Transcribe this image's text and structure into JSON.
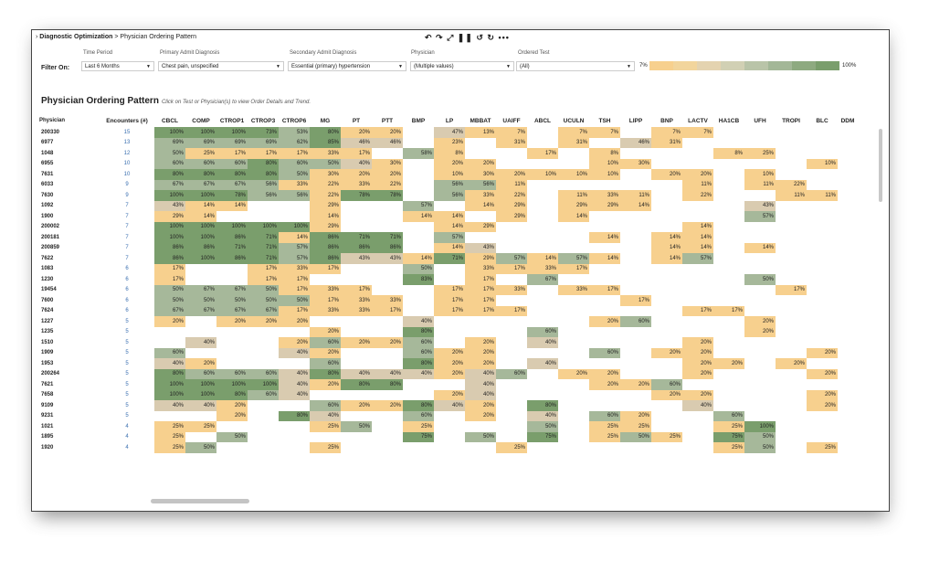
{
  "breadcrumb": {
    "root": "Diagnostic Optimization",
    "sep": " > ",
    "current": "Physician Ordering Pattern"
  },
  "toolbar": {
    "icons": "↶ ↷ ⤢ ❚❚ ↺ ↻  •••"
  },
  "filters": {
    "label": "Filter On:",
    "time_period": {
      "label": "Time Period",
      "value": "Last 6 Months"
    },
    "primary": {
      "label": "Primary Admit Diagnosis",
      "value": "Chest pain, unspecified"
    },
    "secondary": {
      "label": "Secondary Admit Diagnosis",
      "value": "Essential (primary) hypertension"
    },
    "physician": {
      "label": "Physician",
      "value": "(Multiple values)"
    },
    "ordered_test": {
      "label": "Ordered Test",
      "value": "(All)"
    }
  },
  "legend": {
    "min": "7%",
    "max": "100%"
  },
  "title": "Physician Ordering Pattern",
  "subtitle": "Click on Test or Physician(s) to view Order Details and Trend.",
  "colors": {
    "high": "#7a9e6c",
    "mid": "#a6b89a",
    "low_mid": "#d9cbb0",
    "low": "#f7d08e"
  },
  "columns": [
    "Physician",
    "Encounters (#)",
    "CBCL",
    "COMP",
    "CTROP1",
    "CTROP3",
    "CTROP6",
    "MG",
    "PT",
    "PTT",
    "BMP",
    "LP",
    "MBBAT",
    "UAIFF",
    "ABCL",
    "UCULN",
    "TSH",
    "LIPP",
    "BNP",
    "LACTV",
    "HA1CB",
    "UFH",
    "TROPI",
    "BLC",
    "DDM"
  ],
  "rows": [
    [
      "200330",
      "15",
      "100%",
      "100%",
      "100%",
      "73%",
      "53%",
      "80%",
      "20%",
      "20%",
      "",
      "47%",
      "13%",
      "7%",
      "",
      "7%",
      "7%",
      "",
      "7%",
      "7%",
      "",
      "",
      "",
      "",
      ""
    ],
    [
      "6977",
      "13",
      "69%",
      "69%",
      "69%",
      "69%",
      "62%",
      "85%",
      "46%",
      "46%",
      "",
      "23%",
      "",
      "31%",
      "",
      "31%",
      "",
      "46%",
      "31%",
      "",
      "",
      "",
      "",
      "",
      ""
    ],
    [
      "1048",
      "12",
      "50%",
      "25%",
      "17%",
      "17%",
      "17%",
      "33%",
      "17%",
      "",
      "58%",
      "8%",
      "",
      "",
      "17%",
      "",
      "8%",
      "",
      "",
      "",
      "8%",
      "25%",
      "",
      "",
      ""
    ],
    [
      "6955",
      "10",
      "60%",
      "60%",
      "60%",
      "80%",
      "60%",
      "50%",
      "40%",
      "30%",
      "",
      "20%",
      "20%",
      "",
      "",
      "",
      "10%",
      "30%",
      "",
      "",
      "",
      "",
      "",
      "10%",
      ""
    ],
    [
      "7631",
      "10",
      "80%",
      "80%",
      "80%",
      "80%",
      "50%",
      "30%",
      "20%",
      "20%",
      "",
      "10%",
      "30%",
      "20%",
      "10%",
      "10%",
      "10%",
      "",
      "20%",
      "20%",
      "",
      "10%",
      "",
      "",
      ""
    ],
    [
      "6033",
      "9",
      "67%",
      "67%",
      "67%",
      "56%",
      "33%",
      "22%",
      "33%",
      "22%",
      "",
      "56%",
      "56%",
      "11%",
      "",
      "",
      "",
      "",
      "",
      "11%",
      "",
      "11%",
      "22%",
      "",
      ""
    ],
    [
      "7630",
      "9",
      "100%",
      "100%",
      "78%",
      "56%",
      "56%",
      "22%",
      "78%",
      "78%",
      "",
      "56%",
      "33%",
      "22%",
      "",
      "11%",
      "33%",
      "11%",
      "",
      "22%",
      "",
      "",
      "11%",
      "11%",
      ""
    ],
    [
      "1092",
      "7",
      "43%",
      "14%",
      "14%",
      "",
      "",
      "29%",
      "",
      "",
      "57%",
      "",
      "14%",
      "29%",
      "",
      "29%",
      "29%",
      "14%",
      "",
      "",
      "",
      "43%",
      "",
      "",
      ""
    ],
    [
      "1900",
      "7",
      "29%",
      "14%",
      "",
      "",
      "",
      "14%",
      "",
      "",
      "14%",
      "14%",
      "",
      "29%",
      "",
      "14%",
      "",
      "",
      "",
      "",
      "",
      "57%",
      "",
      "",
      ""
    ],
    [
      "200002",
      "7",
      "100%",
      "100%",
      "100%",
      "100%",
      "100%",
      "29%",
      "",
      "",
      "",
      "14%",
      "29%",
      "",
      "",
      "",
      "",
      "",
      "",
      "14%",
      "",
      "",
      "",
      "",
      ""
    ],
    [
      "200181",
      "7",
      "100%",
      "100%",
      "86%",
      "71%",
      "14%",
      "86%",
      "71%",
      "71%",
      "",
      "57%",
      "",
      "",
      "",
      "",
      "14%",
      "",
      "14%",
      "14%",
      "",
      "",
      "",
      "",
      ""
    ],
    [
      "200859",
      "7",
      "86%",
      "86%",
      "71%",
      "71%",
      "57%",
      "86%",
      "86%",
      "86%",
      "",
      "14%",
      "43%",
      "",
      "",
      "",
      "",
      "",
      "14%",
      "14%",
      "",
      "14%",
      "",
      "",
      ""
    ],
    [
      "7622",
      "7",
      "86%",
      "100%",
      "86%",
      "71%",
      "57%",
      "86%",
      "43%",
      "43%",
      "14%",
      "71%",
      "29%",
      "57%",
      "14%",
      "57%",
      "14%",
      "",
      "14%",
      "57%",
      "",
      "",
      "",
      "",
      ""
    ],
    [
      "1083",
      "6",
      "17%",
      "",
      "",
      "17%",
      "33%",
      "17%",
      "",
      "",
      "50%",
      "",
      "33%",
      "17%",
      "33%",
      "17%",
      "",
      "",
      "",
      "",
      "",
      "",
      "",
      "",
      ""
    ],
    [
      "1230",
      "6",
      "17%",
      "",
      "",
      "17%",
      "17%",
      "",
      "",
      "",
      "83%",
      "",
      "17%",
      "",
      "67%",
      "",
      "",
      "",
      "",
      "",
      "",
      "50%",
      "",
      "",
      ""
    ],
    [
      "19454",
      "6",
      "50%",
      "67%",
      "67%",
      "50%",
      "17%",
      "33%",
      "17%",
      "",
      "",
      "17%",
      "17%",
      "33%",
      "",
      "33%",
      "17%",
      "",
      "",
      "",
      "",
      "",
      "17%",
      "",
      ""
    ],
    [
      "7600",
      "6",
      "50%",
      "50%",
      "50%",
      "50%",
      "50%",
      "17%",
      "33%",
      "33%",
      "",
      "17%",
      "17%",
      "",
      "",
      "",
      "",
      "17%",
      "",
      "",
      "",
      "",
      "",
      "",
      ""
    ],
    [
      "7624",
      "6",
      "67%",
      "67%",
      "67%",
      "67%",
      "17%",
      "33%",
      "33%",
      "17%",
      "",
      "17%",
      "17%",
      "17%",
      "",
      "",
      "",
      "",
      "",
      "17%",
      "17%",
      "",
      "",
      "",
      ""
    ],
    [
      "1227",
      "5",
      "20%",
      "",
      "20%",
      "20%",
      "20%",
      "",
      "",
      "",
      "40%",
      "",
      "",
      "",
      "",
      "",
      "20%",
      "60%",
      "",
      "",
      "",
      "20%",
      "",
      "",
      ""
    ],
    [
      "1235",
      "5",
      "",
      "",
      "",
      "",
      "",
      "20%",
      "",
      "",
      "80%",
      "",
      "",
      "",
      "60%",
      "",
      "",
      "",
      "",
      "",
      "",
      "20%",
      "",
      "",
      ""
    ],
    [
      "1510",
      "5",
      "",
      "40%",
      "",
      "",
      "20%",
      "60%",
      "20%",
      "20%",
      "60%",
      "",
      "20%",
      "",
      "40%",
      "",
      "",
      "",
      "",
      "20%",
      "",
      "",
      "",
      "",
      ""
    ],
    [
      "1909",
      "5",
      "60%",
      "",
      "",
      "",
      "40%",
      "20%",
      "",
      "",
      "60%",
      "20%",
      "20%",
      "",
      "",
      "",
      "60%",
      "",
      "20%",
      "20%",
      "",
      "",
      "",
      "20%",
      ""
    ],
    [
      "1953",
      "5",
      "40%",
      "20%",
      "",
      "",
      "",
      "60%",
      "",
      "",
      "80%",
      "20%",
      "20%",
      "",
      "40%",
      "",
      "",
      "",
      "",
      "20%",
      "20%",
      "",
      "20%",
      "",
      ""
    ],
    [
      "200264",
      "5",
      "80%",
      "60%",
      "60%",
      "60%",
      "40%",
      "80%",
      "40%",
      "40%",
      "40%",
      "20%",
      "40%",
      "60%",
      "",
      "20%",
      "20%",
      "",
      "",
      "20%",
      "",
      "",
      "",
      "20%",
      ""
    ],
    [
      "7621",
      "5",
      "100%",
      "100%",
      "100%",
      "100%",
      "40%",
      "20%",
      "80%",
      "80%",
      "",
      "",
      "40%",
      "",
      "",
      "",
      "20%",
      "20%",
      "60%",
      "",
      "",
      "",
      "",
      "",
      ""
    ],
    [
      "7658",
      "5",
      "100%",
      "100%",
      "80%",
      "60%",
      "40%",
      "",
      "",
      "",
      "",
      "20%",
      "40%",
      "",
      "",
      "",
      "",
      "",
      "20%",
      "20%",
      "",
      "",
      "",
      "20%",
      ""
    ],
    [
      "9109",
      "5",
      "40%",
      "40%",
      "20%",
      "",
      "",
      "60%",
      "20%",
      "20%",
      "80%",
      "40%",
      "20%",
      "",
      "80%",
      "",
      "",
      "",
      "",
      "40%",
      "",
      "",
      "",
      "20%",
      ""
    ],
    [
      "9231",
      "5",
      "",
      "",
      "20%",
      "",
      "80%",
      "40%",
      "",
      "",
      "60%",
      "",
      "20%",
      "",
      "40%",
      "",
      "60%",
      "20%",
      "",
      "",
      "60%",
      "",
      "",
      "",
      ""
    ],
    [
      "1021",
      "4",
      "25%",
      "25%",
      "",
      "",
      "",
      "25%",
      "50%",
      "",
      "25%",
      "",
      "",
      "",
      "50%",
      "",
      "25%",
      "25%",
      "",
      "",
      "25%",
      "100%",
      "",
      "",
      ""
    ],
    [
      "1895",
      "4",
      "25%",
      "",
      "50%",
      "",
      "",
      "",
      "",
      "",
      "75%",
      "",
      "50%",
      "",
      "75%",
      "",
      "25%",
      "50%",
      "25%",
      "",
      "75%",
      "50%",
      "",
      "",
      ""
    ],
    [
      "1920",
      "4",
      "25%",
      "50%",
      "",
      "",
      "",
      "25%",
      "",
      "",
      "",
      "",
      "",
      "25%",
      "",
      "",
      "",
      "",
      "",
      "",
      "25%",
      "50%",
      "",
      "25%",
      ""
    ]
  ]
}
